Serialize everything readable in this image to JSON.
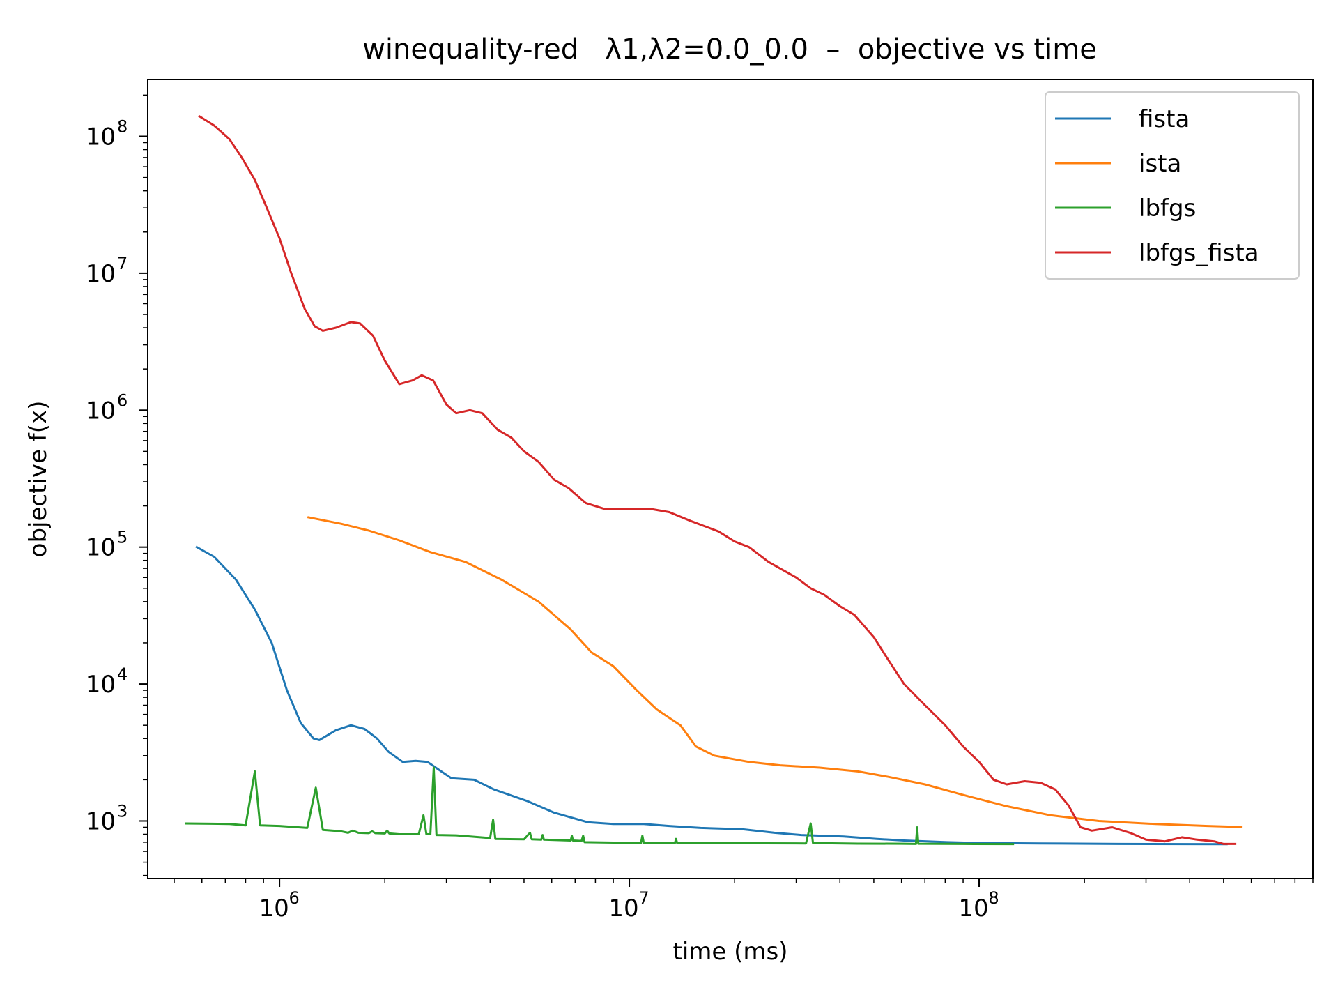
{
  "chart_data": {
    "type": "line",
    "title": "winequality-red   λ1,λ2=0.0_0.0  –  objective vs time",
    "xlabel": "time (ms)",
    "ylabel": "objective f(x)",
    "xscale": "log",
    "yscale": "log",
    "xlim": [
      420000,
      900000000
    ],
    "ylim": [
      380,
      260000000
    ],
    "x_ticks": [
      {
        "value": 1000000,
        "base": "10",
        "exp": "6"
      },
      {
        "value": 10000000,
        "base": "10",
        "exp": "7"
      },
      {
        "value": 100000000,
        "base": "10",
        "exp": "8"
      }
    ],
    "y_ticks": [
      {
        "value": 1000,
        "base": "10",
        "exp": "3"
      },
      {
        "value": 10000,
        "base": "10",
        "exp": "4"
      },
      {
        "value": 100000,
        "base": "10",
        "exp": "5"
      },
      {
        "value": 1000000,
        "base": "10",
        "exp": "6"
      },
      {
        "value": 10000000,
        "base": "10",
        "exp": "7"
      },
      {
        "value": 100000000,
        "base": "10",
        "exp": "8"
      }
    ],
    "grid": false,
    "legend_position": "top-right",
    "series": [
      {
        "name": "fista",
        "color": "#1f77b4",
        "points": [
          [
            580000,
            100000
          ],
          [
            650000,
            85000
          ],
          [
            750000,
            58000
          ],
          [
            850000,
            35000
          ],
          [
            950000,
            20000
          ],
          [
            1050000,
            9000
          ],
          [
            1150000,
            5200
          ],
          [
            1250000,
            4000
          ],
          [
            1300000,
            3900
          ],
          [
            1450000,
            4600
          ],
          [
            1600000,
            5000
          ],
          [
            1750000,
            4700
          ],
          [
            1900000,
            4000
          ],
          [
            2050000,
            3200
          ],
          [
            2250000,
            2700
          ],
          [
            2450000,
            2750
          ],
          [
            2650000,
            2700
          ],
          [
            2900000,
            2300
          ],
          [
            3100000,
            2050
          ],
          [
            3600000,
            2000
          ],
          [
            4100000,
            1700
          ],
          [
            5100000,
            1400
          ],
          [
            6100000,
            1150
          ],
          [
            7600000,
            980
          ],
          [
            9000000,
            950
          ],
          [
            11000000,
            950
          ],
          [
            13000000,
            920
          ],
          [
            16000000,
            890
          ],
          [
            21000000,
            870
          ],
          [
            26000000,
            820
          ],
          [
            31000000,
            790
          ],
          [
            41000000,
            770
          ],
          [
            51000000,
            740
          ],
          [
            61000000,
            720
          ],
          [
            81000000,
            700
          ],
          [
            101000000,
            690
          ],
          [
            150000000,
            685
          ],
          [
            250000000,
            680
          ],
          [
            400000000,
            678
          ],
          [
            510000000,
            677
          ]
        ]
      },
      {
        "name": "ista",
        "color": "#ff7f0e",
        "points": [
          [
            1210000,
            165000
          ],
          [
            1500000,
            148000
          ],
          [
            1800000,
            132000
          ],
          [
            2200000,
            112000
          ],
          [
            2700000,
            92000
          ],
          [
            3400000,
            78000
          ],
          [
            4300000,
            58000
          ],
          [
            5500000,
            40000
          ],
          [
            6800000,
            25000
          ],
          [
            7800000,
            17000
          ],
          [
            9000000,
            13500
          ],
          [
            10500000,
            9000
          ],
          [
            12000000,
            6500
          ],
          [
            14000000,
            5000
          ],
          [
            15500000,
            3500
          ],
          [
            17500000,
            3000
          ],
          [
            22000000,
            2700
          ],
          [
            27000000,
            2550
          ],
          [
            35000000,
            2450
          ],
          [
            45000000,
            2300
          ],
          [
            55000000,
            2100
          ],
          [
            70000000,
            1850
          ],
          [
            90000000,
            1550
          ],
          [
            120000000,
            1280
          ],
          [
            160000000,
            1100
          ],
          [
            220000000,
            1000
          ],
          [
            320000000,
            950
          ],
          [
            450000000,
            920
          ],
          [
            560000000,
            905
          ]
        ]
      },
      {
        "name": "lbfgs",
        "color": "#2ca02c",
        "points": [
          [
            540000,
            960
          ],
          [
            640000,
            955
          ],
          [
            720000,
            950
          ],
          [
            800000,
            930
          ],
          [
            850000,
            2300
          ],
          [
            880000,
            930
          ],
          [
            1000000,
            920
          ],
          [
            1200000,
            890
          ],
          [
            1270000,
            1750
          ],
          [
            1330000,
            860
          ],
          [
            1500000,
            840
          ],
          [
            1570000,
            820
          ],
          [
            1620000,
            850
          ],
          [
            1680000,
            820
          ],
          [
            1800000,
            815
          ],
          [
            1840000,
            840
          ],
          [
            1880000,
            815
          ],
          [
            2000000,
            810
          ],
          [
            2030000,
            850
          ],
          [
            2060000,
            810
          ],
          [
            2200000,
            800
          ],
          [
            2500000,
            800
          ],
          [
            2580000,
            1100
          ],
          [
            2630000,
            800
          ],
          [
            2700000,
            800
          ],
          [
            2760000,
            2450
          ],
          [
            2810000,
            790
          ],
          [
            3200000,
            785
          ],
          [
            4000000,
            750
          ],
          [
            4080000,
            1020
          ],
          [
            4140000,
            740
          ],
          [
            5000000,
            735
          ],
          [
            5200000,
            820
          ],
          [
            5260000,
            735
          ],
          [
            5600000,
            730
          ],
          [
            5650000,
            790
          ],
          [
            5700000,
            730
          ],
          [
            6800000,
            720
          ],
          [
            6850000,
            780
          ],
          [
            6900000,
            720
          ],
          [
            7300000,
            715
          ],
          [
            7380000,
            780
          ],
          [
            7450000,
            700
          ],
          [
            9000000,
            695
          ],
          [
            10800000,
            690
          ],
          [
            10900000,
            780
          ],
          [
            11000000,
            690
          ],
          [
            13500000,
            690
          ],
          [
            13600000,
            740
          ],
          [
            13700000,
            690
          ],
          [
            20000000,
            688
          ],
          [
            32000000,
            685
          ],
          [
            33000000,
            960
          ],
          [
            33500000,
            690
          ],
          [
            45000000,
            683
          ],
          [
            60000000,
            682
          ],
          [
            66000000,
            680
          ],
          [
            66500000,
            900
          ],
          [
            67000000,
            682
          ],
          [
            90000000,
            680
          ],
          [
            125000000,
            678
          ]
        ]
      },
      {
        "name": "lbfgs_fista",
        "color": "#d62728",
        "points": [
          [
            590000,
            140000000
          ],
          [
            650000,
            120000000
          ],
          [
            720000,
            95000000
          ],
          [
            780000,
            70000000
          ],
          [
            850000,
            48000000
          ],
          [
            920000,
            30000000
          ],
          [
            1000000,
            18000000
          ],
          [
            1080000,
            10000000
          ],
          [
            1180000,
            5500000
          ],
          [
            1260000,
            4100000
          ],
          [
            1330000,
            3800000
          ],
          [
            1450000,
            4000000
          ],
          [
            1600000,
            4400000
          ],
          [
            1700000,
            4300000
          ],
          [
            1850000,
            3500000
          ],
          [
            2000000,
            2300000
          ],
          [
            2200000,
            1550000
          ],
          [
            2400000,
            1650000
          ],
          [
            2550000,
            1800000
          ],
          [
            2750000,
            1650000
          ],
          [
            3000000,
            1100000
          ],
          [
            3200000,
            950000
          ],
          [
            3500000,
            1000000
          ],
          [
            3800000,
            950000
          ],
          [
            4200000,
            720000
          ],
          [
            4600000,
            630000
          ],
          [
            5000000,
            500000
          ],
          [
            5500000,
            420000
          ],
          [
            6100000,
            310000
          ],
          [
            6700000,
            270000
          ],
          [
            7500000,
            210000
          ],
          [
            8500000,
            190000
          ],
          [
            10000000,
            190000
          ],
          [
            11500000,
            190000
          ],
          [
            13000000,
            180000
          ],
          [
            15000000,
            155000
          ],
          [
            18000000,
            130000
          ],
          [
            20000000,
            110000
          ],
          [
            22000000,
            100000
          ],
          [
            25000000,
            78000
          ],
          [
            30000000,
            60000
          ],
          [
            33000000,
            50000
          ],
          [
            36000000,
            45000
          ],
          [
            40000000,
            37000
          ],
          [
            44000000,
            32000
          ],
          [
            50000000,
            22000
          ],
          [
            55000000,
            15000
          ],
          [
            61000000,
            10000
          ],
          [
            70000000,
            7000
          ],
          [
            80000000,
            5000
          ],
          [
            90000000,
            3500
          ],
          [
            100000000,
            2700
          ],
          [
            110000000,
            2000
          ],
          [
            120000000,
            1850
          ],
          [
            135000000,
            1950
          ],
          [
            150000000,
            1900
          ],
          [
            165000000,
            1700
          ],
          [
            180000000,
            1300
          ],
          [
            195000000,
            900
          ],
          [
            210000000,
            850
          ],
          [
            240000000,
            900
          ],
          [
            270000000,
            820
          ],
          [
            300000000,
            730
          ],
          [
            340000000,
            710
          ],
          [
            380000000,
            760
          ],
          [
            420000000,
            730
          ],
          [
            470000000,
            710
          ],
          [
            500000000,
            680
          ],
          [
            540000000,
            680
          ]
        ]
      }
    ]
  }
}
